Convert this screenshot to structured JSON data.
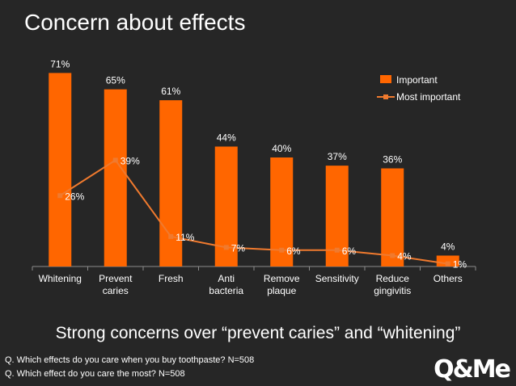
{
  "title": "Concern about effects",
  "conclusion": "Strong concerns over “prevent caries” and “whitening”",
  "questions": [
    "Q. Which effects do you care when you buy toothpaste? N=508",
    "Q. Which effect do you care the most? N=508"
  ],
  "logo": "Q&Me",
  "colors": {
    "background": "#262626",
    "bar": "#ff6600",
    "line": "#f07a2e",
    "text": "#ffffff",
    "axis": "#8c8c8c"
  },
  "chart_data": {
    "type": "bar",
    "title": "",
    "xlabel": "",
    "ylabel": "",
    "ylim": [
      0,
      80
    ],
    "grid": false,
    "legend_position": "top-right",
    "categories": [
      [
        "Whitening"
      ],
      [
        "Prevent",
        "caries"
      ],
      [
        "Fresh"
      ],
      [
        "Anti",
        "bacteria"
      ],
      [
        "Remove",
        "plaque"
      ],
      [
        "Sensitivity"
      ],
      [
        "Reduce",
        "gingivitis"
      ],
      [
        "Others"
      ]
    ],
    "series": [
      {
        "name": "Important",
        "type": "bar",
        "values": [
          71,
          65,
          61,
          44,
          40,
          37,
          36,
          4
        ],
        "labels": [
          "71%",
          "65%",
          "61%",
          "44%",
          "40%",
          "37%",
          "36%",
          "4%"
        ]
      },
      {
        "name": "Most important",
        "type": "line",
        "values": [
          26,
          39,
          11,
          7,
          6,
          6,
          4,
          1
        ],
        "labels": [
          "26%",
          "39%",
          "11%",
          "7%",
          "6%",
          "6%",
          "4%",
          "1%"
        ]
      }
    ]
  }
}
